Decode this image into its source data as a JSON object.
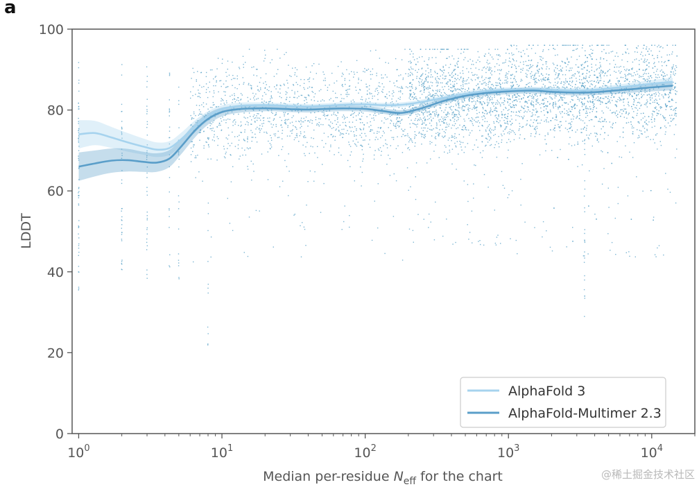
{
  "panel_label": "a",
  "watermark": "@稀土掘金技术社区",
  "colors": {
    "alphafold3": "#a6d3ee",
    "multimer": "#5a9ec9",
    "points": "#5aa3c8",
    "axis": "#555555"
  },
  "chart_data": {
    "type": "scatter",
    "xlabel": {
      "prefix": "Median per-residue ",
      "symbol": "N",
      "subscript": "eff",
      "suffix": " for the chart"
    },
    "ylabel": "LDDT",
    "xscale": "log",
    "xlim": [
      0.9,
      20000
    ],
    "ylim": [
      0,
      100
    ],
    "yticks": [
      0,
      20,
      40,
      60,
      80,
      100
    ],
    "xticks": [
      {
        "value": 1,
        "base": "10",
        "exp": "0"
      },
      {
        "value": 10,
        "base": "10",
        "exp": "1"
      },
      {
        "value": 100,
        "base": "10",
        "exp": "2"
      },
      {
        "value": 1000,
        "base": "10",
        "exp": "3"
      },
      {
        "value": 10000,
        "base": "10",
        "exp": "4"
      }
    ],
    "grid": false,
    "legend_position": "bottom-right",
    "series": [
      {
        "name": "AlphaFold 3",
        "x": [
          1,
          1.3,
          1.7,
          2.2,
          2.8,
          3.5,
          4.3,
          5.2,
          6.5,
          8,
          10,
          13,
          17,
          22,
          30,
          40,
          55,
          70,
          100,
          130,
          180,
          250,
          350,
          500,
          700,
          1000,
          1500,
          2000,
          3000,
          4000,
          5500,
          7500,
          10000,
          14000
        ],
        "y": [
          74,
          74.3,
          73.2,
          72,
          71,
          70.2,
          70.6,
          72.8,
          76,
          78.5,
          80.2,
          81,
          81.2,
          81.2,
          81,
          80.9,
          81.1,
          81.3,
          81.4,
          81.2,
          81.3,
          82,
          83,
          84,
          84.7,
          85,
          85.1,
          85,
          84.8,
          85,
          85.5,
          86,
          86.5,
          87
        ],
        "band": [
          3.5,
          3,
          2.6,
          2.3,
          2,
          1.8,
          1.7,
          1.6,
          1.5,
          1.2,
          1,
          0.8,
          0.7,
          0.6,
          0.6,
          0.6,
          0.6,
          0.6,
          0.6,
          0.6,
          0.6,
          0.6,
          0.6,
          0.6,
          0.6,
          0.6,
          0.6,
          0.6,
          0.6,
          0.6,
          0.7,
          0.8,
          0.9,
          1
        ]
      },
      {
        "name": "AlphaFold-Multimer 2.3",
        "x": [
          1,
          1.3,
          1.7,
          2.2,
          2.8,
          3.5,
          4.3,
          5.2,
          6.5,
          8,
          10,
          13,
          17,
          22,
          30,
          40,
          55,
          70,
          100,
          130,
          180,
          250,
          350,
          500,
          700,
          1000,
          1500,
          2000,
          3000,
          4000,
          5500,
          7500,
          10000,
          14000
        ],
        "y": [
          66,
          66.8,
          67.5,
          67.6,
          67.2,
          67,
          68,
          71,
          75,
          77.8,
          79.5,
          80.2,
          80.4,
          80.4,
          80.2,
          80.1,
          80.3,
          80.4,
          80.3,
          79.8,
          79.3,
          80.5,
          82.2,
          83.5,
          84.2,
          84.6,
          84.8,
          84.5,
          84.3,
          84.4,
          84.8,
          85.2,
          85.6,
          86
        ],
        "band": [
          3.5,
          3.2,
          3,
          2.8,
          2.5,
          2.3,
          2.1,
          1.9,
          1.7,
          1.4,
          1.1,
          0.9,
          0.8,
          0.7,
          0.7,
          0.7,
          0.7,
          0.7,
          0.7,
          0.7,
          0.7,
          0.7,
          0.7,
          0.7,
          0.7,
          0.7,
          0.7,
          0.7,
          0.7,
          0.7,
          0.8,
          0.9,
          1,
          1.1
        ]
      }
    ],
    "scatter_columns": [
      {
        "x": 1,
        "y_min": 35,
        "y_max": 92,
        "n": 60
      },
      {
        "x": 2,
        "y_min": 35,
        "y_max": 93,
        "n": 40
      },
      {
        "x": 3,
        "y_min": 37,
        "y_max": 92,
        "n": 40
      },
      {
        "x": 4.3,
        "y_min": 39,
        "y_max": 90,
        "n": 25
      },
      {
        "x": 5,
        "y_min": 37,
        "y_max": 86,
        "n": 20
      },
      {
        "x": 8,
        "y_min": 21,
        "y_max": 90,
        "n": 15
      },
      {
        "x": 3400,
        "y_min": 25,
        "y_max": 88,
        "n": 35
      }
    ],
    "scatter_cloud": [
      {
        "x_from": 6,
        "x_to": 200,
        "y_min": 42,
        "y_max": 95,
        "center": 80,
        "spread": 6,
        "n": 1300
      },
      {
        "x_from": 200,
        "x_to": 1000,
        "y_min": 46,
        "y_max": 95,
        "center": 83,
        "spread": 6,
        "n": 1300
      },
      {
        "x_from": 1000,
        "x_to": 15000,
        "y_min": 43,
        "y_max": 96,
        "center": 85,
        "spread": 6,
        "n": 2000
      }
    ]
  }
}
